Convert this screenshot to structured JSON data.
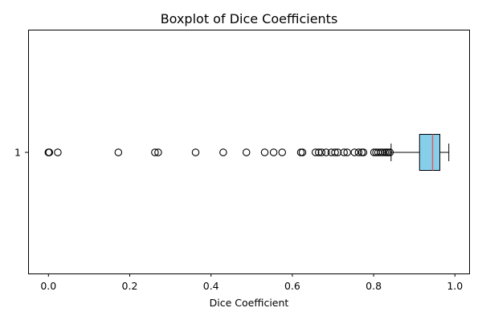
{
  "chart_data": {
    "type": "boxplot",
    "orientation": "horizontal",
    "title": "Boxplot of Dice Coefficients",
    "xlabel": "Dice Coefficient",
    "ylabel": "",
    "xlim": [
      -0.05,
      1.035
    ],
    "xticks": [
      0.0,
      0.2,
      0.4,
      0.6,
      0.8,
      1.0
    ],
    "xtick_labels": [
      "0.0",
      "0.2",
      "0.4",
      "0.6",
      "0.8",
      "1.0"
    ],
    "yticks": [
      1
    ],
    "ytick_labels": [
      "1"
    ],
    "grid": false,
    "box": {
      "position": 1,
      "whisker_low": 0.843,
      "q1": 0.913,
      "median": 0.945,
      "q3": 0.963,
      "whisker_high": 0.985,
      "fill_color": "#87CEEB",
      "edge_color": "#000000",
      "median_color": "#E8585A"
    },
    "outliers": [
      0.0,
      0.001,
      0.002,
      0.023,
      0.172,
      0.262,
      0.27,
      0.362,
      0.43,
      0.487,
      0.532,
      0.554,
      0.575,
      0.621,
      0.625,
      0.657,
      0.665,
      0.672,
      0.683,
      0.696,
      0.705,
      0.712,
      0.727,
      0.735,
      0.753,
      0.763,
      0.771,
      0.775,
      0.801,
      0.806,
      0.811,
      0.817,
      0.822,
      0.828,
      0.832,
      0.836,
      0.84
    ]
  }
}
